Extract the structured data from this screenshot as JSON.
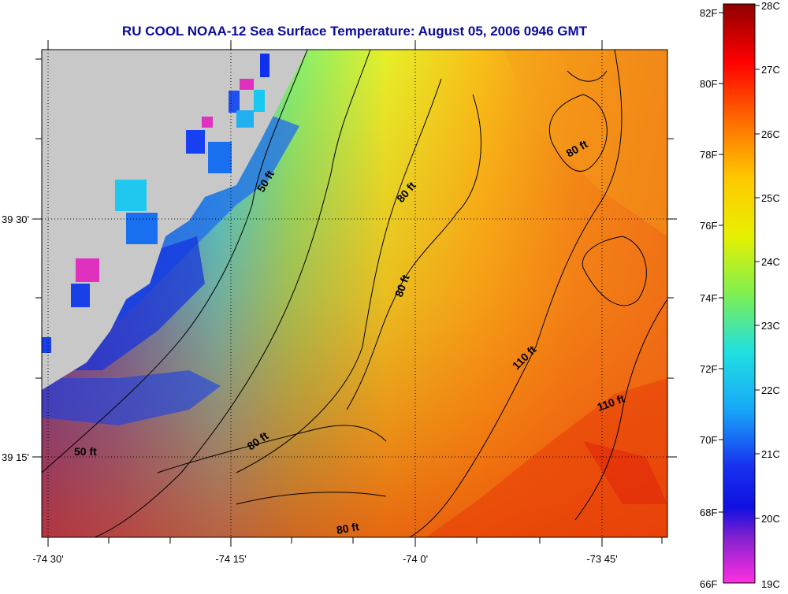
{
  "title": "RU COOL  NOAA-12  Sea Surface Temperature:  August 05, 2006 0946 GMT",
  "axes": {
    "x_ticks": [
      "-74 30'",
      "-74 15'",
      "-74 0'",
      "-73 45'"
    ],
    "y_ticks": [
      "39 30'",
      "39 15'"
    ]
  },
  "contour_labels": [
    "50 ft",
    "50 ft",
    "80 ft",
    "80 ft",
    "80 ft",
    "80 ft",
    "80 ft",
    "110 ft",
    "110 ft"
  ],
  "colorbar": {
    "fahrenheit": [
      "82F",
      "80F",
      "78F",
      "76F",
      "74F",
      "72F",
      "70F",
      "68F",
      "66F"
    ],
    "celsius": [
      "28C",
      "27C",
      "26C",
      "25C",
      "24C",
      "23C",
      "22C",
      "21C",
      "20C",
      "19C"
    ]
  },
  "colors": {
    "title": "#0a0aa0",
    "land": "#c8c8c8",
    "warm": "#e85a10",
    "cold": "#1030e0"
  }
}
